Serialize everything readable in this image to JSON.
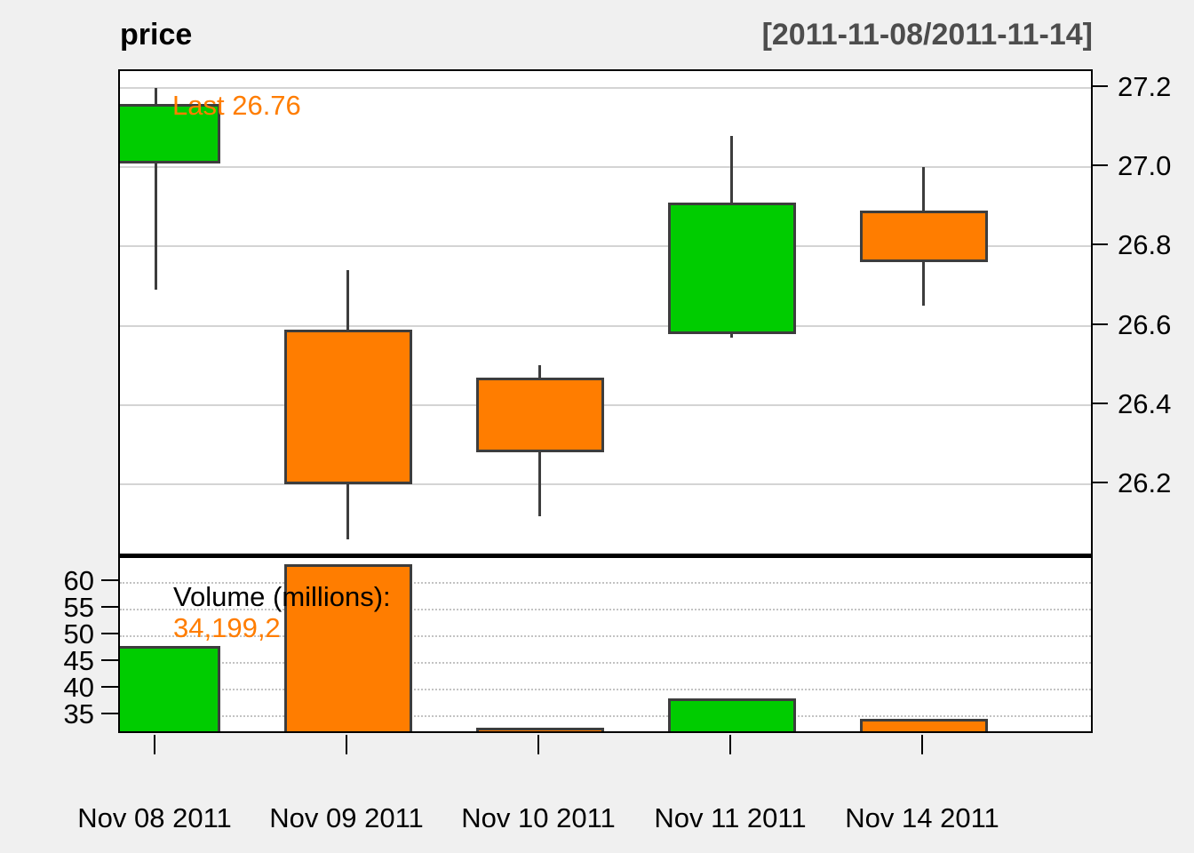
{
  "header": {
    "title": "price",
    "range": "[2011-11-08/2011-11-14]"
  },
  "annotations": {
    "last_label": "Last 26.76",
    "volume_label": "Volume (millions):",
    "volume_value": "34,199,2"
  },
  "colors": {
    "up": "#00CC00",
    "down": "#FF7D00",
    "candle_border": "#3D3D3D",
    "accent_text": "#FF7D00",
    "range_text": "#4D4D4D",
    "background": "#F0F0F0",
    "panel_bg": "#FFFFFF",
    "grid_solid": "#D4D4D4",
    "grid_dotted": "#C3C3C3"
  },
  "chart_data": {
    "type": "candlestick",
    "title": "price",
    "subtitle": "[2011-11-08/2011-11-14]",
    "categories": [
      "Nov 08 2011",
      "Nov 09 2011",
      "Nov 10 2011",
      "Nov 11 2011",
      "Nov 14 2011"
    ],
    "ohlc": [
      {
        "date": "Nov 08 2011",
        "open": 27.01,
        "high": 27.2,
        "low": 26.69,
        "close": 27.16,
        "direction": "up"
      },
      {
        "date": "Nov 09 2011",
        "open": 26.59,
        "high": 26.74,
        "low": 26.06,
        "close": 26.2,
        "direction": "down"
      },
      {
        "date": "Nov 10 2011",
        "open": 26.47,
        "high": 26.5,
        "low": 26.12,
        "close": 26.28,
        "direction": "down"
      },
      {
        "date": "Nov 11 2011",
        "open": 26.58,
        "high": 27.08,
        "low": 26.57,
        "close": 26.91,
        "direction": "up"
      },
      {
        "date": "Nov 14 2011",
        "open": 26.89,
        "high": 27.0,
        "low": 26.65,
        "close": 26.76,
        "direction": "down"
      }
    ],
    "volume_millions": [
      47.9,
      63.2,
      32.5,
      38.0,
      34.2
    ],
    "last_price": 26.76,
    "price_axis": {
      "side": "right",
      "tick_labels": [
        "27.2",
        "27.0",
        "26.8",
        "26.6",
        "26.4",
        "26.2"
      ],
      "tick_values": [
        27.2,
        27.0,
        26.8,
        26.6,
        26.4,
        26.2
      ],
      "ylim": [
        26.02,
        27.24
      ],
      "grid": "solid"
    },
    "volume_axis": {
      "side": "left",
      "tick_labels": [
        "60",
        "55",
        "50",
        "45",
        "40",
        "35"
      ],
      "tick_values": [
        60,
        55,
        50,
        45,
        40,
        35
      ],
      "ylim": [
        31.3,
        64.7
      ],
      "grid": "dotted"
    }
  }
}
